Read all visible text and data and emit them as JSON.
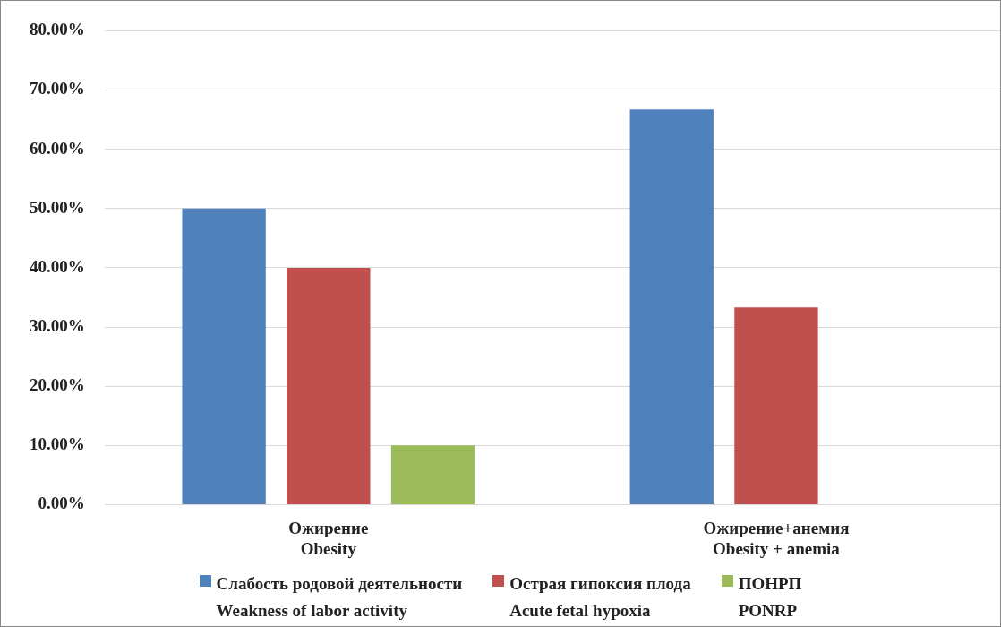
{
  "chart_data": {
    "type": "bar",
    "categories": [
      "Ожирение\nObesity",
      "Ожирение+анемия\nObesity + anemia"
    ],
    "series": [
      {
        "name": "Слабость родовой деятельности\nWeakness of labor activity",
        "color": "#4f81bd",
        "values": [
          50,
          66.7
        ]
      },
      {
        "name": "Острая гипоксия плода\nAcute fetal hypoxia",
        "color": "#c0504d",
        "values": [
          40,
          33.3
        ]
      },
      {
        "name": "ПОНРП\nPONRP",
        "color": "#9bbb59",
        "values": [
          10,
          0
        ]
      }
    ],
    "ylim": [
      0,
      80
    ],
    "yticks": [
      {
        "value": 0,
        "label": "0.00%"
      },
      {
        "value": 10,
        "label": "10.00%"
      },
      {
        "value": 20,
        "label": "20.00%"
      },
      {
        "value": 30,
        "label": "30.00%"
      },
      {
        "value": 40,
        "label": "40.00%"
      },
      {
        "value": 50,
        "label": "50.00%"
      },
      {
        "value": 60,
        "label": "60.00%"
      },
      {
        "value": 70,
        "label": "70.00%"
      },
      {
        "value": 80,
        "label": "80.00%"
      }
    ],
    "grid": "y",
    "legend": "bottom"
  }
}
